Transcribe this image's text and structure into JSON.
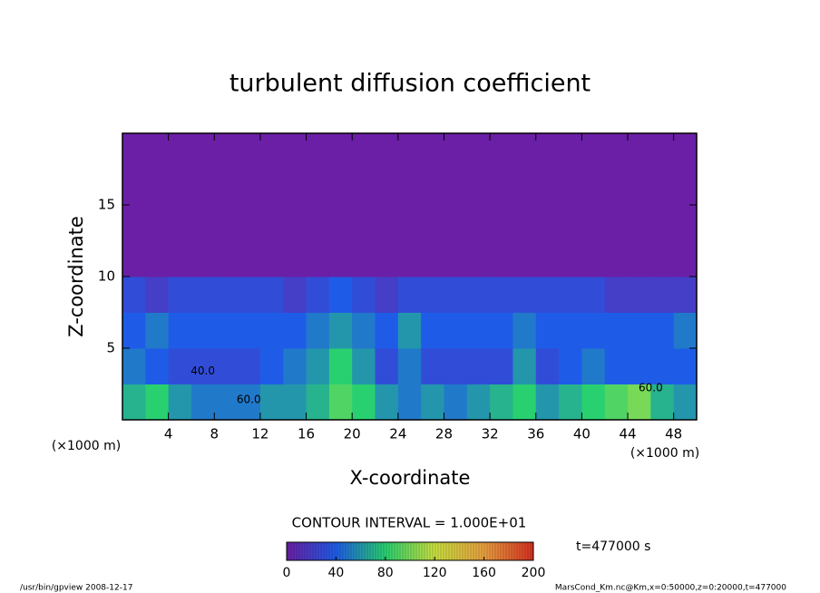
{
  "chart_data": {
    "type": "heatmap",
    "title": "turbulent diffusion coefficient",
    "x_label": "X-coordinate",
    "y_label": "Z-coordinate",
    "unit_labels": [
      "(×1000 m)",
      "(×1000 m)"
    ],
    "xlim": [
      0,
      50
    ],
    "ylim": [
      0,
      20
    ],
    "xticks": [
      4,
      8,
      12,
      16,
      20,
      24,
      28,
      32,
      36,
      40,
      44,
      48
    ],
    "yticks": [
      5,
      10,
      15
    ],
    "xbins": [
      0,
      2,
      4,
      6,
      8,
      10,
      12,
      14,
      16,
      18,
      20,
      22,
      24,
      26,
      28,
      30,
      32,
      34,
      36,
      38,
      40,
      42,
      44,
      46,
      48,
      50
    ],
    "zbins": [
      0,
      2.5,
      5,
      7.5,
      10,
      20
    ],
    "values": [
      [
        70,
        80,
        60,
        50,
        50,
        50,
        60,
        60,
        70,
        90,
        80,
        60,
        50,
        60,
        50,
        60,
        70,
        80,
        60,
        70,
        80,
        90,
        100,
        70,
        60
      ],
      [
        50,
        40,
        30,
        30,
        30,
        30,
        40,
        50,
        60,
        80,
        60,
        30,
        50,
        30,
        30,
        30,
        30,
        60,
        30,
        40,
        50,
        40,
        40,
        40,
        40
      ],
      [
        40,
        50,
        40,
        40,
        40,
        40,
        40,
        40,
        50,
        60,
        50,
        40,
        60,
        40,
        40,
        40,
        40,
        50,
        40,
        40,
        40,
        40,
        40,
        40,
        50
      ],
      [
        30,
        20,
        30,
        30,
        30,
        30,
        30,
        20,
        30,
        40,
        30,
        20,
        30,
        30,
        30,
        30,
        30,
        30,
        30,
        30,
        30,
        20,
        20,
        20,
        20
      ],
      [
        0,
        0,
        0,
        0,
        0,
        0,
        0,
        0,
        0,
        0,
        0,
        0,
        0,
        0,
        0,
        0,
        0,
        0,
        0,
        0,
        0,
        0,
        0,
        0,
        0
      ]
    ],
    "contour_labels": [
      {
        "value": 40,
        "label": "40.0",
        "x": 7,
        "z": 3.4
      },
      {
        "value": 60,
        "label": "60.0",
        "x": 11,
        "z": 1.4
      },
      {
        "value": 60,
        "label": "60.0",
        "x": 46,
        "z": 2.2
      }
    ],
    "colorbar": {
      "lim": [
        0,
        200
      ],
      "ticks": [
        0,
        40,
        80,
        120,
        160,
        200
      ],
      "colors": [
        "#6b1fa6",
        "#1e5ce8",
        "#28d070",
        "#c8e040",
        "#e8a040",
        "#d83020"
      ]
    },
    "contour_interval_label": "CONTOUR INTERVAL = 1.000E+01",
    "time_label": "t=477000 s",
    "footer_left": "/usr/bin/gpview  2008-12-17",
    "footer_right": "MarsCond_Km.nc@Km,x=0:50000,z=0:20000,t=477000"
  }
}
